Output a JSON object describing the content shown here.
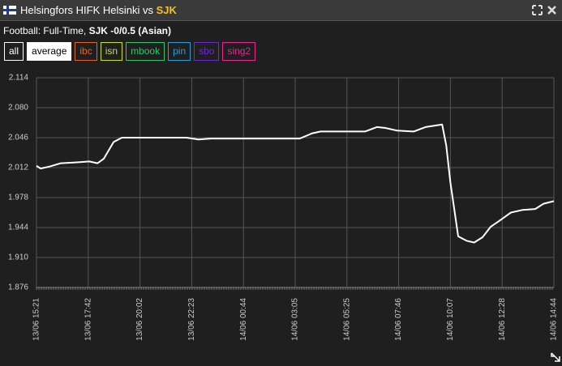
{
  "header": {
    "home": "Helsingfors HIFK Helsinki",
    "vs": "vs",
    "away": "SJK"
  },
  "subtitle": {
    "market": "Football: Full-Time,",
    "selection": "SJK -0/0.5 (Asian)"
  },
  "buttons": [
    {
      "label": "all",
      "color": "#ffffff"
    },
    {
      "label": "average",
      "color": "#ffffff",
      "active": true
    },
    {
      "label": "ibc",
      "color": "#e0632a"
    },
    {
      "label": "isn",
      "color": "#c6e03a"
    },
    {
      "label": "mbook",
      "color": "#35c46a"
    },
    {
      "label": "pin",
      "color": "#2f9ad8"
    },
    {
      "label": "sbo",
      "color": "#6a2bd4"
    },
    {
      "label": "sing2",
      "color": "#e0288e"
    }
  ],
  "chart_data": {
    "type": "line",
    "color": "#ffffff",
    "grid": true,
    "x": [
      0,
      0.08,
      0.24,
      0.47,
      0.78,
      1.02,
      1.18,
      1.3,
      1.49,
      1.65,
      2.9,
      3.13,
      3.37,
      5.09,
      5.33,
      5.49,
      6.35,
      6.58,
      6.74,
      6.97,
      7.29,
      7.52,
      7.84,
      7.92,
      8.0,
      8.15,
      8.31,
      8.46,
      8.62,
      8.78,
      8.93,
      9.17,
      9.4,
      9.64,
      9.8,
      10
    ],
    "values": [
      2.014,
      2.011,
      2.013,
      2.017,
      2.018,
      2.019,
      2.017,
      2.022,
      2.041,
      2.046,
      2.046,
      2.044,
      2.045,
      2.045,
      2.051,
      2.053,
      2.053,
      2.058,
      2.057,
      2.054,
      2.053,
      2.058,
      2.061,
      2.037,
      1.995,
      1.934,
      1.929,
      1.927,
      1.933,
      1.945,
      1.951,
      1.961,
      1.964,
      1.965,
      1.971,
      1.974
    ],
    "xlim": [
      0,
      10
    ],
    "xticks": [
      {
        "value": 0,
        "label": "13/06 15:21"
      },
      {
        "value": 1,
        "label": "13/06 17:42"
      },
      {
        "value": 2,
        "label": "13/06 20:02"
      },
      {
        "value": 3,
        "label": "13/06 22:23"
      },
      {
        "value": 4,
        "label": "14/06 00:44"
      },
      {
        "value": 5,
        "label": "14/06 03:05"
      },
      {
        "value": 6,
        "label": "14/06 05:25"
      },
      {
        "value": 7,
        "label": "14/06 07:46"
      },
      {
        "value": 8,
        "label": "14/06 10:07"
      },
      {
        "value": 9,
        "label": "14/06 12:28"
      },
      {
        "value": 10,
        "label": "14/06 14:44"
      }
    ],
    "ylim": [
      1.876,
      2.114
    ],
    "yticks": [
      2.114,
      {
        "value": 2.08,
        "label": "2.080"
      },
      2.046,
      2.012,
      1.978,
      1.944,
      {
        "value": 1.91,
        "label": "1.910"
      },
      1.876
    ]
  }
}
